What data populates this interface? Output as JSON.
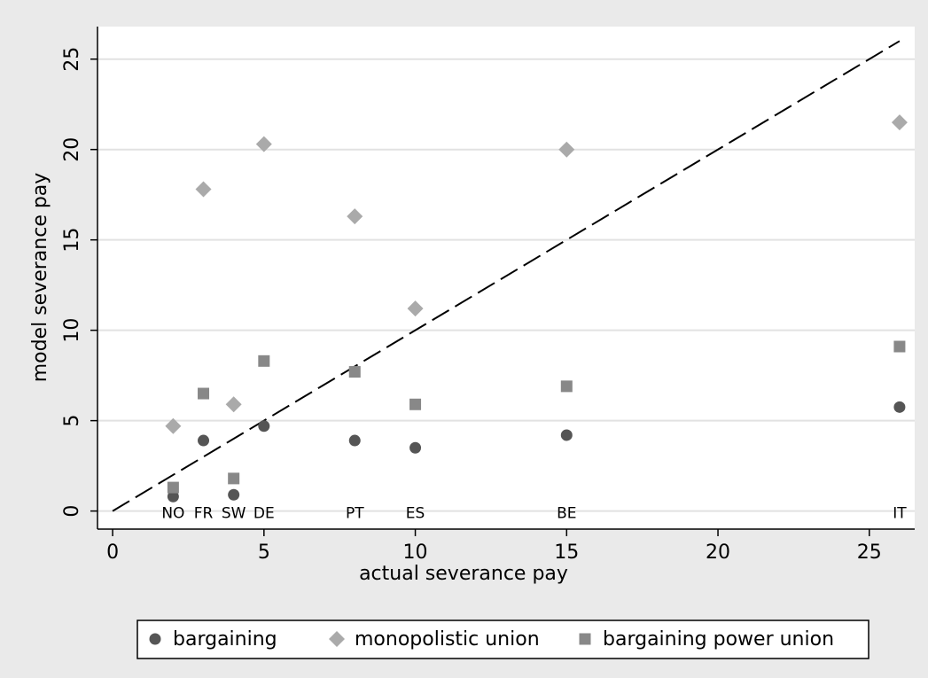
{
  "chart_data": {
    "type": "scatter",
    "x_label": "actual severance pay",
    "y_label": "model severance pay",
    "x": [
      2,
      3,
      4,
      5,
      8,
      10,
      15,
      26
    ],
    "point_labels": [
      "NO",
      "FR",
      "SW",
      "DE",
      "PT",
      "ES",
      "BE",
      "IT"
    ],
    "series": [
      {
        "name": "bargaining",
        "color": "#555555",
        "marker": "circle",
        "values": [
          0.8,
          3.9,
          0.9,
          4.7,
          3.9,
          3.5,
          4.2,
          5.75
        ]
      },
      {
        "name": "monopolistic union",
        "color": "#aaaaaa",
        "marker": "diamond",
        "values": [
          4.7,
          17.8,
          5.9,
          20.3,
          16.3,
          11.2,
          20.0,
          21.5
        ]
      },
      {
        "name": "bargaining power union",
        "color": "#888888",
        "marker": "square",
        "values": [
          1.3,
          6.5,
          1.8,
          8.3,
          7.7,
          5.9,
          6.9,
          9.1
        ]
      }
    ],
    "reference_line": {
      "x": [
        0,
        2,
        3,
        4,
        5,
        8,
        10,
        15,
        26
      ],
      "values": [
        0,
        2,
        3,
        4,
        5,
        8,
        10,
        15,
        26
      ]
    },
    "xlim": [
      -0.5,
      26.5
    ],
    "ylim": [
      -1,
      26.8
    ],
    "xticks": [
      0,
      5,
      10,
      15,
      20,
      25
    ],
    "yticks": [
      0,
      5,
      10,
      15,
      20,
      25
    ],
    "grid": true,
    "legend": "bottom"
  }
}
